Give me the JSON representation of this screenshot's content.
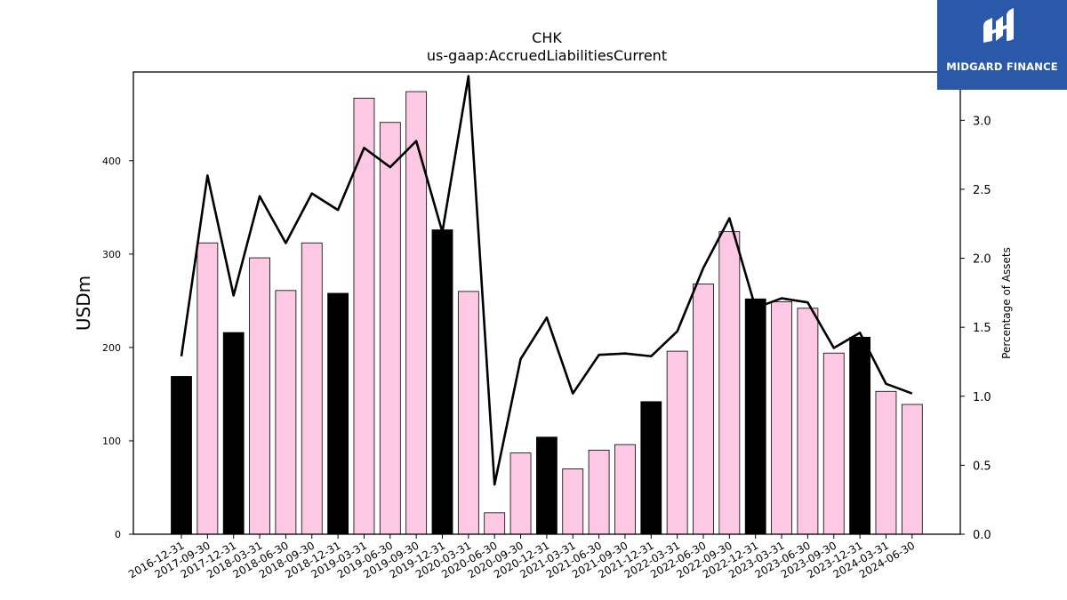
{
  "logo": {
    "text": "MIDGARD FINANCE",
    "background": "#2b59a9"
  },
  "chart_data": {
    "type": "bar",
    "title": "CHK",
    "subtitle": "us-gaap:AccruedLiabilitiesCurrent",
    "ylabel": "USDm",
    "y2label": "Percentage of Assets",
    "ylim": [
      0,
      495
    ],
    "y2lim": [
      0,
      3.35
    ],
    "yticks": [
      0,
      100,
      200,
      300,
      400
    ],
    "y2ticks": [
      0.0,
      0.5,
      1.0,
      1.5,
      2.0,
      2.5,
      3.0
    ],
    "categories": [
      "2016-12-31",
      "2017-09-30",
      "2017-12-31",
      "2018-03-31",
      "2018-06-30",
      "2018-09-30",
      "2018-12-31",
      "2019-03-31",
      "2019-06-30",
      "2019-09-30",
      "2019-12-31",
      "2020-03-31",
      "2020-06-30",
      "2020-09-30",
      "2020-12-31",
      "2021-03-31",
      "2021-06-30",
      "2021-09-30",
      "2021-12-31",
      "2022-03-31",
      "2022-06-30",
      "2022-09-30",
      "2022-12-31",
      "2023-03-31",
      "2023-06-30",
      "2023-09-30",
      "2023-12-31",
      "2024-03-31",
      "2024-06-30"
    ],
    "series": [
      {
        "kind": "bar",
        "values": [
          169,
          312,
          216,
          296,
          261,
          312,
          258,
          467,
          441,
          474,
          326,
          260,
          23,
          87,
          104,
          70,
          90,
          96,
          142,
          196,
          268,
          324,
          252,
          249,
          242,
          194,
          211,
          153,
          139
        ]
      },
      {
        "kind": "line",
        "axis": "right",
        "values": [
          1.29,
          2.6,
          1.73,
          2.45,
          2.11,
          2.47,
          2.35,
          2.8,
          2.66,
          2.85,
          2.19,
          3.32,
          0.36,
          1.27,
          1.57,
          1.02,
          1.3,
          1.31,
          1.29,
          1.47,
          1.93,
          2.29,
          1.64,
          1.71,
          1.68,
          1.35,
          1.46,
          1.09,
          1.02
        ]
      }
    ],
    "bar_colors": {
      "year_end": "#000000",
      "quarter": "#fcc8e4"
    },
    "year_end_flags": [
      1,
      0,
      1,
      0,
      0,
      0,
      1,
      0,
      0,
      0,
      1,
      0,
      0,
      0,
      1,
      0,
      0,
      0,
      1,
      0,
      0,
      0,
      1,
      0,
      0,
      0,
      1,
      0,
      0
    ],
    "line_color": "#000000",
    "grid": false,
    "legend": "none"
  }
}
